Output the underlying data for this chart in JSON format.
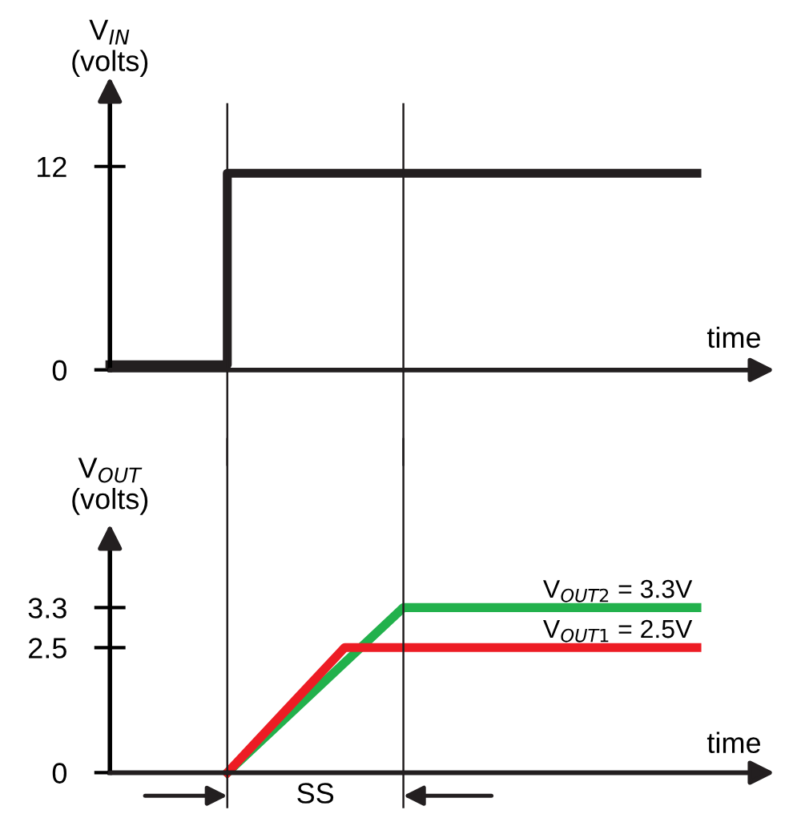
{
  "chart_data": [
    {
      "type": "step",
      "ylabel": "V$_{IN}$\n(volts)",
      "xlabel": "time",
      "categories": [
        null,
        null,
        null,
        null,
        null,
        null,
        null,
        null,
        null,
        null,
        null
      ],
      "ylim": [
        0,
        16
      ],
      "yticks": [
        0,
        12
      ],
      "tick_labels": "y",
      "series": [
        {
          "color": "#231f20",
          "values": [
            0.3,
            0.3,
            11.6,
            11.6,
            11.6,
            11.6,
            11.6,
            11.6,
            11.6,
            11.6,
            11.6
          ]
        }
      ]
    },
    {
      "type": "line",
      "ylabel": "V$_{OUT}$\n(volts)",
      "xlabel": "time",
      "categories": [
        null,
        null,
        null,
        null,
        null,
        null,
        null,
        null,
        null,
        null,
        null
      ],
      "ylim": [
        0,
        4.6
      ],
      "yticks": [
        0,
        2.5,
        3.3
      ],
      "tick_labels": "y",
      "series": [
        {
          "name": "V$_{OUT2}$ = 3.3V",
          "color": "#22b14c",
          "values": [
            null,
            null,
            0,
            1.1,
            2.2,
            3.3,
            3.3,
            3.3,
            3.3,
            3.3,
            3.3
          ]
        },
        {
          "name": "V$_{OUT1}$ = 2.5V",
          "color": "#ed1c24",
          "values": [
            null,
            null,
            0,
            1.25,
            2.5,
            2.5,
            2.5,
            2.5,
            2.5,
            2.5,
            2.5
          ]
        }
      ],
      "annotations": [
        "SS"
      ]
    }
  ]
}
